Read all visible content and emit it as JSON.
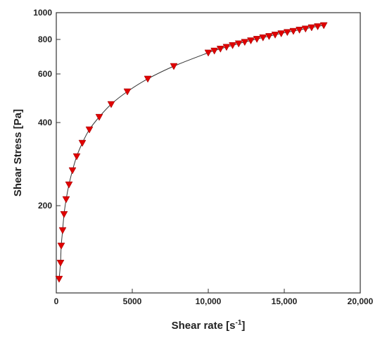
{
  "chart_data": {
    "type": "scatter",
    "x_label": {
      "text": "Shear rate [s",
      "superscript": "-1",
      "suffix": "]"
    },
    "y_label": "Shear Stress [Pa]",
    "log_y": true,
    "fit_line": true,
    "line_color": "#333333",
    "series": [
      {
        "color": "#e00000",
        "x": [
          185,
          278,
          324,
          417,
          509,
          648,
          833,
          1065,
          1343,
          1713,
          2176,
          2824,
          3611,
          4676,
          6019,
          7731,
          10000,
          10400,
          10800,
          11200,
          11600,
          12000,
          12400,
          12800,
          13200,
          13600,
          14000,
          14400,
          14800,
          15200,
          15600,
          16000,
          16400,
          16800,
          17200,
          17600
        ],
        "values": [
          108.6,
          124.2,
          143.2,
          162.9,
          186.3,
          210.9,
          238.5,
          268.4,
          301.7,
          337.4,
          377.3,
          419,
          466,
          518,
          576,
          640,
          716,
          728,
          740,
          751,
          762,
          773,
          783,
          793,
          803,
          813,
          822,
          832,
          841,
          850,
          858,
          867,
          875,
          884,
          892,
          900
        ]
      }
    ],
    "xlim": [
      0,
      20000
    ],
    "xticks": [
      0,
      5000,
      {
        "value": 10000,
        "label": "10,000"
      },
      {
        "value": 15000,
        "label": "15,000"
      },
      {
        "value": 20000,
        "label": "20,000"
      }
    ],
    "ylim": [
      96.6,
      1000
    ],
    "yticks": [
      200,
      400,
      600,
      800,
      1000
    ]
  }
}
